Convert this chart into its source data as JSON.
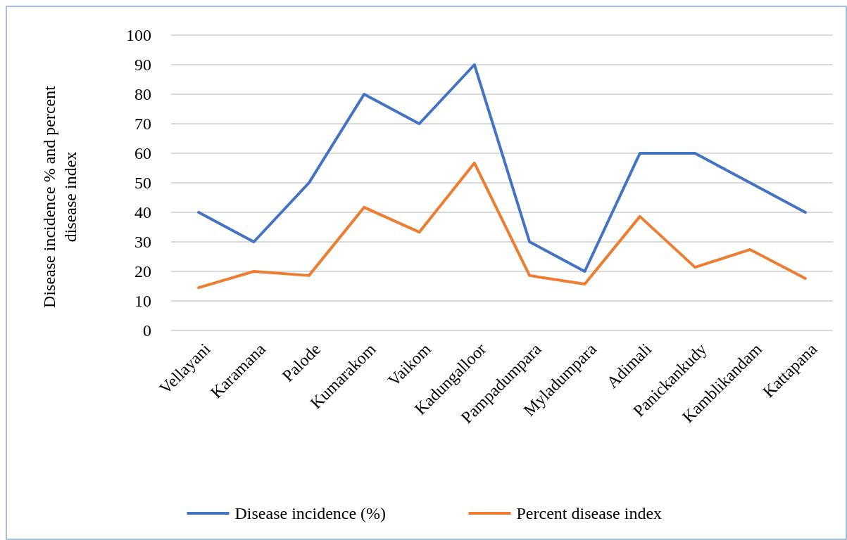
{
  "chart_data": {
    "type": "line",
    "ylabel": "Disease incidence % and percent disease index",
    "categories": [
      "Vellayani",
      "Karamana",
      "Palode",
      "Kumarakom",
      "Vaikom",
      "Kadungalloor",
      "Pampadumpara",
      "Myladumpara",
      "Adimali",
      "Panickankudy",
      "Kamblikandam",
      "Kattapana"
    ],
    "series": [
      {
        "name": "Disease incidence (%)",
        "color": "#4472c4",
        "values": [
          40,
          30,
          50,
          80,
          70,
          90,
          30,
          20,
          60,
          60,
          50,
          40
        ]
      },
      {
        "name": "Percent disease index",
        "color": "#ed7d31",
        "values": [
          14.5,
          20,
          18.6,
          41.7,
          33.3,
          56.7,
          18.6,
          15.7,
          38.6,
          21.4,
          27.4,
          17.6
        ]
      }
    ],
    "ylim": [
      0,
      100
    ],
    "yticks": [
      0,
      10,
      20,
      30,
      40,
      50,
      60,
      70,
      80,
      90,
      100
    ],
    "grid": "y",
    "legend": "bottom",
    "marker": "none",
    "line_style": "solid"
  }
}
